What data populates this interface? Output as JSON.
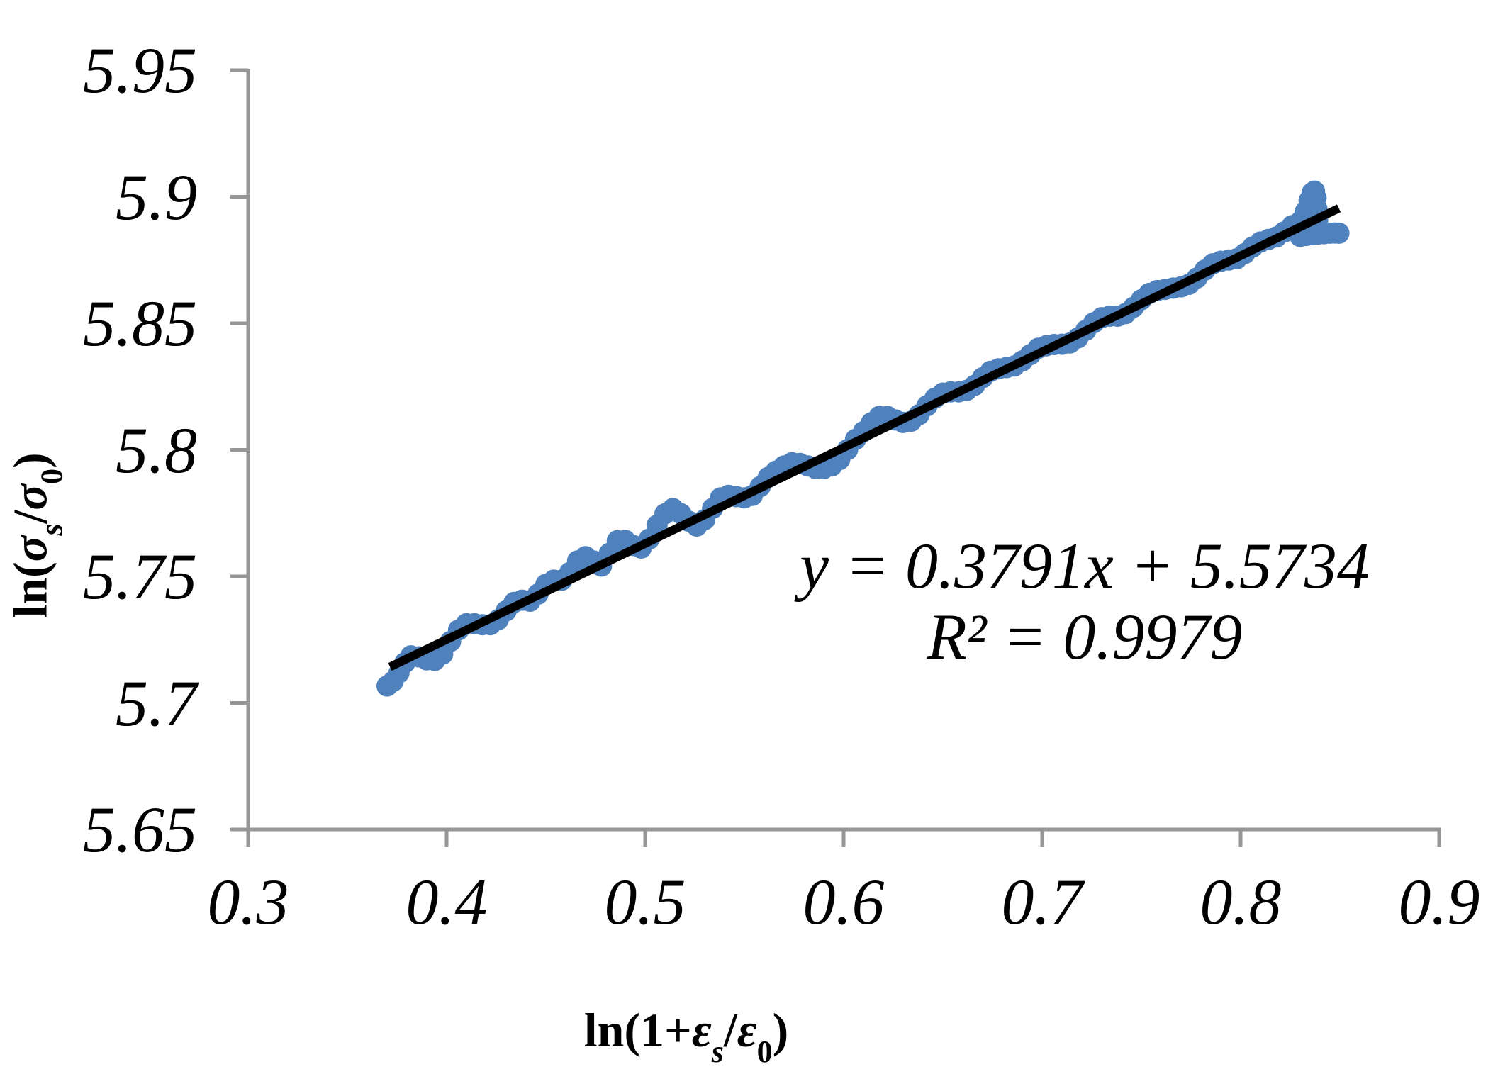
{
  "chart_data": {
    "type": "scatter",
    "title": "",
    "xlabel": "ln(1+εs/ε0)",
    "ylabel": "ln(σs/σ0)",
    "xlabel_parts": {
      "fn": "ln(1+",
      "num": "ε",
      "num_sub": "s",
      "slash": "/",
      "den": "ε",
      "den_sub": "0",
      "close": ")"
    },
    "ylabel_parts": {
      "fn": "ln(",
      "num": "σ",
      "num_sub": "s",
      "slash": "/",
      "den": "σ",
      "den_sub": "0",
      "close": ")"
    },
    "xlim": [
      0.3,
      0.9
    ],
    "ylim": [
      5.65,
      5.95
    ],
    "x_ticks": [
      0.3,
      0.4,
      0.5,
      0.6,
      0.7,
      0.8,
      0.9
    ],
    "y_ticks": [
      5.95,
      5.9,
      5.85,
      5.8,
      5.75,
      5.7,
      5.65
    ],
    "x_tick_labels": [
      "0.3",
      "0.4",
      "0.5",
      "0.6",
      "0.7",
      "0.8",
      "0.9"
    ],
    "y_tick_labels": [
      "5.95",
      "5.9",
      "5.85",
      "5.8",
      "5.75",
      "5.7",
      "5.65"
    ],
    "grid": false,
    "legend": "none",
    "axis_color": "#969696",
    "text_color": "#000000",
    "annotation": {
      "line1": "y = 0.3791x + 5.5734",
      "line2": "R² = 0.9979"
    },
    "trendline": {
      "slope": 0.3791,
      "intercept": 5.5734,
      "r_squared": 0.9979,
      "x_start": 0.3715,
      "x_end": 0.8495,
      "color": "#000000"
    },
    "series": [
      {
        "name": "ln(1+strain) vs ln(stress)",
        "color": "#4F81BD",
        "marker_radius_px": 15,
        "points": [
          [
            0.37,
            5.7067
          ],
          [
            0.373,
            5.7085
          ],
          [
            0.376,
            5.7119
          ],
          [
            0.379,
            5.7159
          ],
          [
            0.382,
            5.7186
          ],
          [
            0.386,
            5.7182
          ],
          [
            0.39,
            5.717
          ],
          [
            0.394,
            5.7168
          ],
          [
            0.398,
            5.7193
          ],
          [
            0.402,
            5.7243
          ],
          [
            0.406,
            5.7288
          ],
          [
            0.41,
            5.7313
          ],
          [
            0.414,
            5.7313
          ],
          [
            0.418,
            5.7309
          ],
          [
            0.422,
            5.7309
          ],
          [
            0.426,
            5.7329
          ],
          [
            0.43,
            5.7364
          ],
          [
            0.434,
            5.7397
          ],
          [
            0.438,
            5.7406
          ],
          [
            0.442,
            5.7402
          ],
          [
            0.446,
            5.743
          ],
          [
            0.45,
            5.7468
          ],
          [
            0.454,
            5.7485
          ],
          [
            0.458,
            5.7485
          ],
          [
            0.462,
            5.7515
          ],
          [
            0.466,
            5.7561
          ],
          [
            0.47,
            5.7578
          ],
          [
            0.474,
            5.7561
          ],
          [
            0.478,
            5.7541
          ],
          [
            0.482,
            5.7591
          ],
          [
            0.486,
            5.7641
          ],
          [
            0.49,
            5.7642
          ],
          [
            0.494,
            5.7622
          ],
          [
            0.498,
            5.7612
          ],
          [
            0.502,
            5.7647
          ],
          [
            0.506,
            5.7702
          ],
          [
            0.51,
            5.7747
          ],
          [
            0.514,
            5.7768
          ],
          [
            0.518,
            5.7748
          ],
          [
            0.522,
            5.7718
          ],
          [
            0.526,
            5.7699
          ],
          [
            0.53,
            5.7724
          ],
          [
            0.534,
            5.7769
          ],
          [
            0.538,
            5.781
          ],
          [
            0.542,
            5.782
          ],
          [
            0.546,
            5.7815
          ],
          [
            0.55,
            5.781
          ],
          [
            0.554,
            5.782
          ],
          [
            0.558,
            5.7855
          ],
          [
            0.562,
            5.7891
          ],
          [
            0.566,
            5.7916
          ],
          [
            0.57,
            5.7936
          ],
          [
            0.574,
            5.7949
          ],
          [
            0.578,
            5.7946
          ],
          [
            0.582,
            5.7936
          ],
          [
            0.586,
            5.7926
          ],
          [
            0.59,
            5.7926
          ],
          [
            0.594,
            5.7936
          ],
          [
            0.598,
            5.7962
          ],
          [
            0.602,
            5.8001
          ],
          [
            0.606,
            5.8041
          ],
          [
            0.61,
            5.8072
          ],
          [
            0.614,
            5.8107
          ],
          [
            0.618,
            5.8132
          ],
          [
            0.622,
            5.8132
          ],
          [
            0.626,
            5.8118
          ],
          [
            0.63,
            5.8108
          ],
          [
            0.634,
            5.8113
          ],
          [
            0.638,
            5.8139
          ],
          [
            0.642,
            5.8174
          ],
          [
            0.646,
            5.8204
          ],
          [
            0.65,
            5.8224
          ],
          [
            0.654,
            5.8229
          ],
          [
            0.658,
            5.8229
          ],
          [
            0.662,
            5.8235
          ],
          [
            0.666,
            5.8255
          ],
          [
            0.67,
            5.8285
          ],
          [
            0.674,
            5.831
          ],
          [
            0.678,
            5.832
          ],
          [
            0.682,
            5.8325
          ],
          [
            0.686,
            5.8331
          ],
          [
            0.69,
            5.8351
          ],
          [
            0.694,
            5.8376
          ],
          [
            0.698,
            5.8401
          ],
          [
            0.702,
            5.8411
          ],
          [
            0.706,
            5.8416
          ],
          [
            0.71,
            5.8417
          ],
          [
            0.714,
            5.8422
          ],
          [
            0.718,
            5.8442
          ],
          [
            0.722,
            5.8472
          ],
          [
            0.726,
            5.8502
          ],
          [
            0.73,
            5.8522
          ],
          [
            0.734,
            5.8528
          ],
          [
            0.738,
            5.8528
          ],
          [
            0.742,
            5.8538
          ],
          [
            0.746,
            5.8563
          ],
          [
            0.75,
            5.8593
          ],
          [
            0.754,
            5.8618
          ],
          [
            0.758,
            5.8629
          ],
          [
            0.762,
            5.8634
          ],
          [
            0.766,
            5.8639
          ],
          [
            0.77,
            5.8644
          ],
          [
            0.774,
            5.8654
          ],
          [
            0.778,
            5.8679
          ],
          [
            0.782,
            5.871
          ],
          [
            0.786,
            5.8735
          ],
          [
            0.79,
            5.8745
          ],
          [
            0.794,
            5.875
          ],
          [
            0.798,
            5.8755
          ],
          [
            0.802,
            5.8775
          ],
          [
            0.806,
            5.8801
          ],
          [
            0.81,
            5.8821
          ],
          [
            0.814,
            5.8831
          ],
          [
            0.818,
            5.8841
          ],
          [
            0.822,
            5.8861
          ],
          [
            0.826,
            5.8886
          ],
          [
            0.83,
            5.8902
          ],
          [
            0.8325,
            5.894
          ],
          [
            0.8345,
            5.8985
          ],
          [
            0.836,
            5.9015
          ],
          [
            0.8372,
            5.9022
          ],
          [
            0.838,
            5.8995
          ],
          [
            0.8385,
            5.895
          ],
          [
            0.8388,
            5.8905
          ],
          [
            0.839,
            5.8868
          ],
          [
            0.83,
            5.8843
          ],
          [
            0.833,
            5.8847
          ],
          [
            0.836,
            5.885
          ],
          [
            0.839,
            5.8852
          ],
          [
            0.842,
            5.8854
          ],
          [
            0.845,
            5.8856
          ],
          [
            0.8475,
            5.8857
          ],
          [
            0.8495,
            5.8856
          ]
        ]
      }
    ]
  }
}
